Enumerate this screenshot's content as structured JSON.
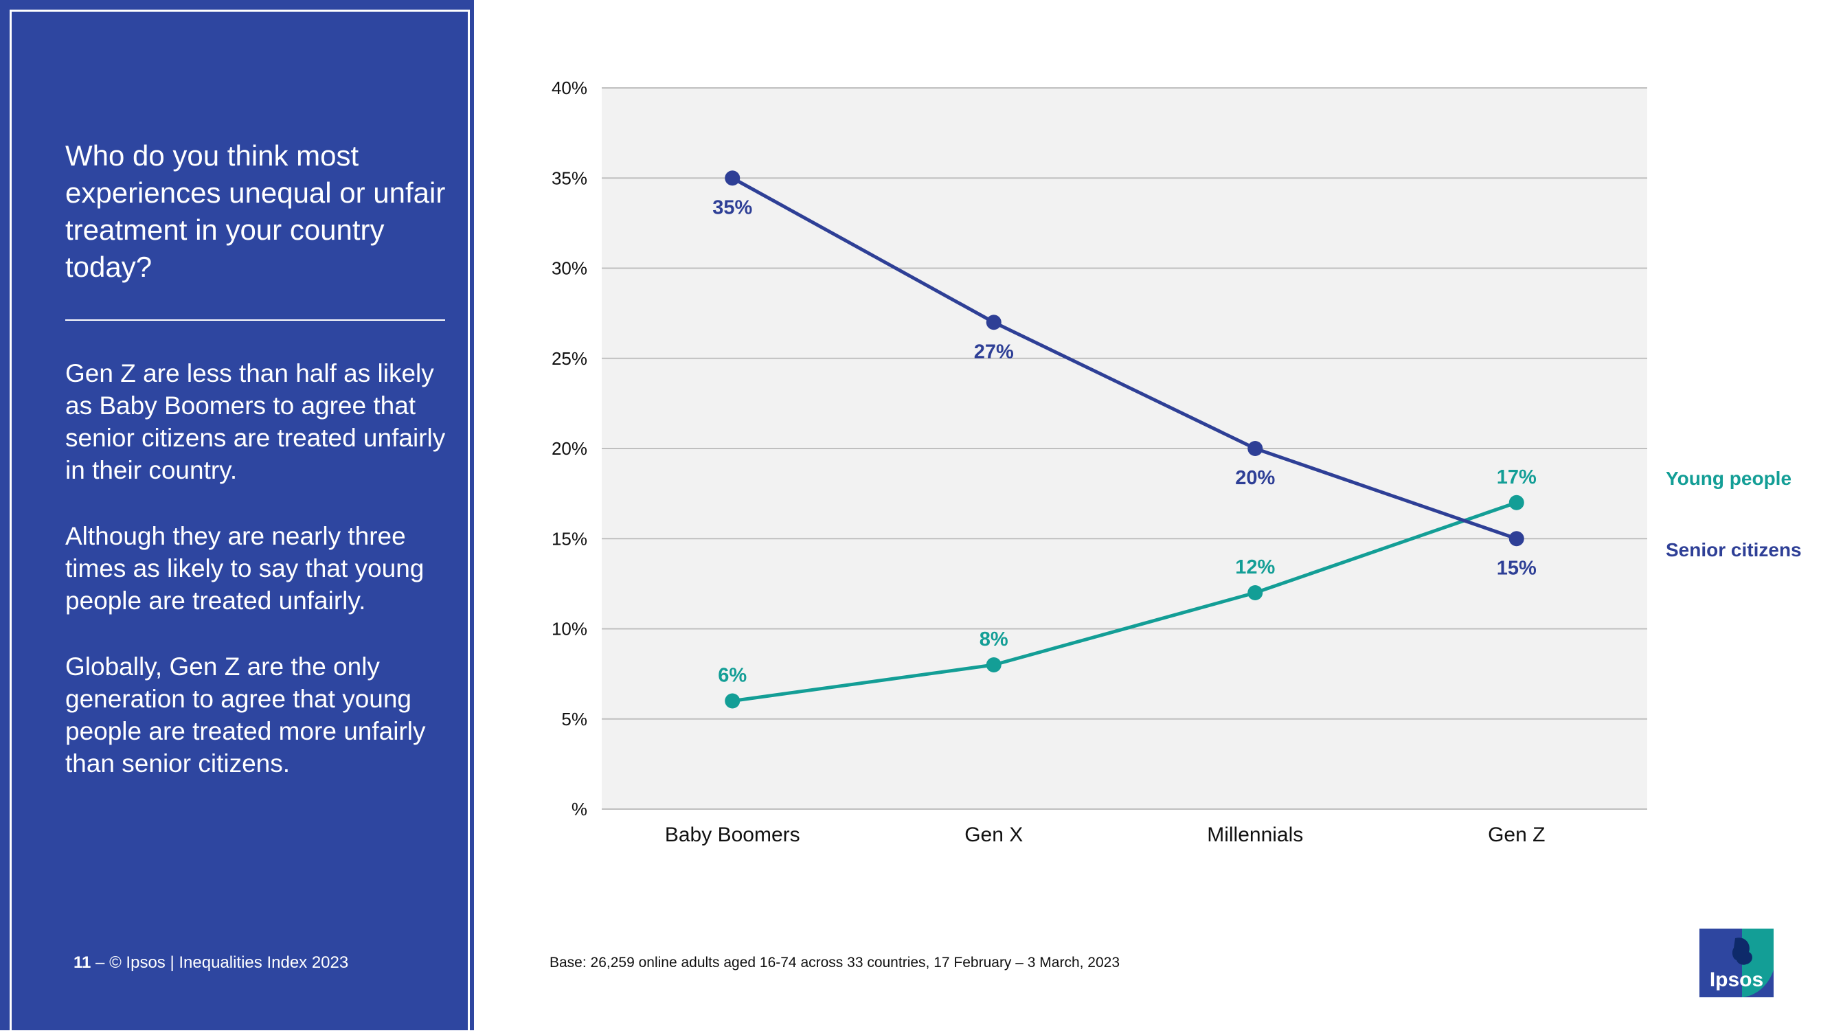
{
  "left_panel": {
    "question": "Who do you think most experiences unequal or unfair treatment in your country today?",
    "paragraphs": [
      "Gen Z are less than half as likely as Baby Boomers to agree that senior citizens are treated unfairly in their country.",
      "Although they are nearly three times as likely to say that young people are treated unfairly.",
      "Globally, Gen Z are the only generation to agree that young people are treated more unfairly than senior citizens."
    ],
    "footer": {
      "page_number": "11",
      "separator": "–",
      "copyright": "© Ipsos | Inequalities Index 2023"
    }
  },
  "base_note": "Base: 26,259 online adults aged 16-74 across 33 countries, 17 February – 3 March, 2023",
  "logo": {
    "text": "Ipsos"
  },
  "colors": {
    "panel_blue": "#2E46A0",
    "senior": "#2E3F96",
    "young": "#139E96",
    "plot_bg": "#F2F2F2",
    "gridline": "#BFBFBF"
  },
  "chart_data": {
    "type": "line",
    "categories": [
      "Baby Boomers",
      "Gen X",
      "Millennials",
      "Gen Z"
    ],
    "ylim": [
      0,
      40
    ],
    "y_ticks": [
      0,
      5,
      10,
      15,
      20,
      25,
      30,
      35,
      40
    ],
    "y_tick_labels": [
      "%",
      "5%",
      "10%",
      "15%",
      "20%",
      "25%",
      "30%",
      "35%",
      "40%"
    ],
    "grid": true,
    "legend_position": "right",
    "series": [
      {
        "name": "Young people",
        "values": [
          6,
          8,
          12,
          17
        ],
        "labels": [
          "6%",
          "8%",
          "12%",
          "17%"
        ],
        "color": "#139E96",
        "label_position": "above"
      },
      {
        "name": "Senior citizens",
        "values": [
          35,
          27,
          20,
          15
        ],
        "labels": [
          "35%",
          "27%",
          "20%",
          "15%"
        ],
        "color": "#2E3F96",
        "label_position": "below"
      }
    ]
  }
}
